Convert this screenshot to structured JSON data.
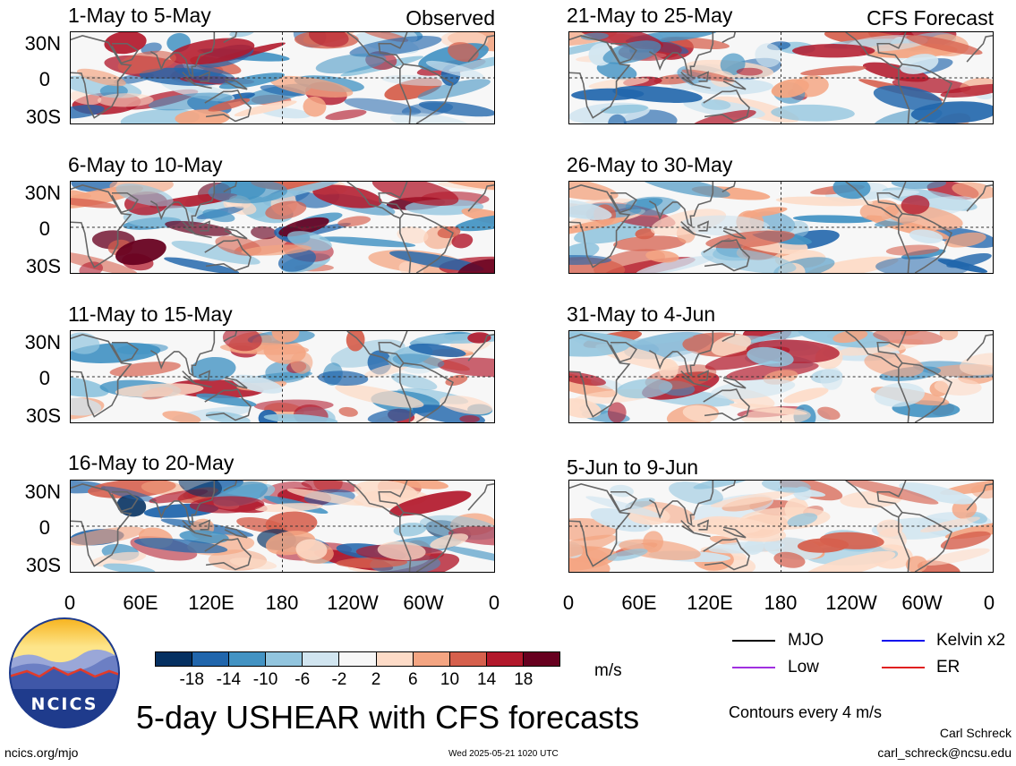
{
  "panels": [
    {
      "title": "1-May to 5-May",
      "kind": "Observed",
      "palette": [
        "#f4a582",
        "#d6604d",
        "#fddbc7",
        "#92c5de",
        "#4393c3",
        "#d1e5f0",
        "#b2182b",
        "#2166ac"
      ]
    },
    {
      "title": "21-May to 25-May",
      "kind": "CFS Forecast",
      "palette": [
        "#92c5de",
        "#f4a582",
        "#d1e5f0",
        "#4393c3",
        "#fddbc7",
        "#d6604d",
        "#2166ac",
        "#b2182b"
      ]
    },
    {
      "title": "6-May to 10-May",
      "kind": "",
      "palette": [
        "#d6604d",
        "#92c5de",
        "#f4a582",
        "#4393c3",
        "#b2182b",
        "#2166ac",
        "#fddbc7",
        "#67001f"
      ]
    },
    {
      "title": "26-May to 30-May",
      "kind": "",
      "palette": [
        "#f4a582",
        "#4393c3",
        "#92c5de",
        "#d6604d",
        "#d1e5f0",
        "#2166ac",
        "#fddbc7",
        "#b2182b"
      ]
    },
    {
      "title": "11-May to 15-May",
      "kind": "",
      "palette": [
        "#92c5de",
        "#f4a582",
        "#d1e5f0",
        "#fddbc7",
        "#4393c3",
        "#d6604d",
        "#b2182b",
        "#2166ac"
      ]
    },
    {
      "title": "31-May to 4-Jun",
      "kind": "",
      "palette": [
        "#f4a582",
        "#d1e5f0",
        "#fddbc7",
        "#92c5de",
        "#d6604d",
        "#4393c3",
        "#b2182b",
        "#fddbc7"
      ]
    },
    {
      "title": "16-May to 20-May",
      "kind": "",
      "palette": [
        "#d6604d",
        "#4393c3",
        "#f4a582",
        "#92c5de",
        "#b2182b",
        "#2166ac",
        "#fddbc7",
        "#053061"
      ]
    },
    {
      "title": "5-Jun to 9-Jun",
      "kind": "",
      "palette": [
        "#fddbc7",
        "#d1e5f0",
        "#f4a582",
        "#92c5de",
        "#fddbc7",
        "#d6604d",
        "#d1e5f0",
        "#f4a582"
      ]
    }
  ],
  "y_ticks": [
    "30N",
    "0",
    "30S"
  ],
  "x_ticks": [
    "0",
    "60E",
    "120E",
    "180",
    "120W",
    "60W",
    "0"
  ],
  "colorbar": {
    "colors": [
      "#053061",
      "#2166ac",
      "#4393c3",
      "#92c5de",
      "#d1e5f0",
      "#f7f7f7",
      "#fddbc7",
      "#f4a582",
      "#d6604d",
      "#b2182b",
      "#67001f"
    ],
    "labels": [
      "-18",
      "-14",
      "-10",
      "-6",
      "-2",
      "2",
      "6",
      "10",
      "14",
      "18"
    ],
    "unit": "m/s"
  },
  "legend": [
    {
      "label": "MJO",
      "color": "#000000"
    },
    {
      "label": "Kelvin x2",
      "color": "#1010ee"
    },
    {
      "label": "Low",
      "color": "#a030e0"
    },
    {
      "label": "ER",
      "color": "#e02020"
    }
  ],
  "logo_text": "NCICS",
  "main_title": "5-day USHEAR with CFS forecasts",
  "contours_note": "Contours every 4 m/s",
  "author": "Carl Schreck",
  "email": "carl_schreck@ncsu.edu",
  "url": "ncics.org/mjo",
  "timestamp": "Wed 2025-05-21 1020 UTC"
}
